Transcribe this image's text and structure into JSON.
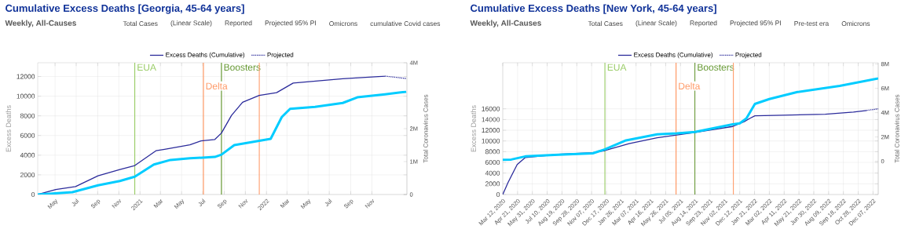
{
  "chart_data": [
    {
      "type": "line",
      "title": "Cumulative Excess Deaths [Georgia, 45-64 years]",
      "subtitle": "Weekly, All-Causes",
      "ylabel": "Excess Deaths",
      "y2label": "Total Coronavirus Cases",
      "xlim": [
        "2020-03-12",
        "2023-02-10"
      ],
      "xticks": [
        {
          "value": "2020-05-01",
          "label": "May"
        },
        {
          "value": "2020-07-01",
          "label": "Jul"
        },
        {
          "value": "2020-09-01",
          "label": "Sep"
        },
        {
          "value": "2020-11-01",
          "label": "Nov"
        },
        {
          "value": "2021-01-01",
          "label": "2021"
        },
        {
          "value": "2021-03-01",
          "label": "Mar"
        },
        {
          "value": "2021-05-01",
          "label": "May"
        },
        {
          "value": "2021-07-01",
          "label": "Jul"
        },
        {
          "value": "2021-09-01",
          "label": "Sep"
        },
        {
          "value": "2021-11-01",
          "label": "Nov"
        },
        {
          "value": "2022-01-01",
          "label": "2022"
        },
        {
          "value": "2022-03-01",
          "label": "Mar"
        },
        {
          "value": "2022-05-01",
          "label": "May"
        },
        {
          "value": "2022-07-01",
          "label": "Jul"
        },
        {
          "value": "2022-09-01",
          "label": "Sep"
        },
        {
          "value": "2022-11-01",
          "label": "Nov"
        }
      ],
      "ylim": [
        0,
        13400
      ],
      "yticks": [
        0,
        2000,
        4000,
        6000,
        8000,
        10000,
        12000
      ],
      "y2lim": [
        0,
        4000000
      ],
      "y2ticks": [
        {
          "value": 0,
          "label": "0"
        },
        {
          "value": 1000000,
          "label": "1M"
        },
        {
          "value": 2000000,
          "label": "2M"
        },
        {
          "value": 4000000,
          "label": "4M"
        }
      ],
      "grid": true,
      "legend": "top",
      "marker": "none",
      "series": [
        {
          "name": "Excess Deaths (Cumulative)",
          "color": "#2b2b9b",
          "line_style": "solid",
          "x": [
            "2020-03-12",
            "2020-05-03",
            "2020-06-29",
            "2020-09-02",
            "2020-11-04",
            "2020-12-17",
            "2021-02-16",
            "2021-03-13",
            "2021-05-25",
            "2021-06-26",
            "2021-08-05",
            "2021-08-24",
            "2021-09-22",
            "2021-10-24",
            "2021-12-11",
            "2022-01-30",
            "2022-03-19",
            "2022-08-09",
            "2022-12-09"
          ],
          "values": [
            0,
            500,
            800,
            1900,
            2550,
            2950,
            4450,
            4600,
            5050,
            5450,
            5600,
            6250,
            8050,
            9380,
            10080,
            10360,
            11340,
            11770,
            12040
          ]
        },
        {
          "name": "Projected",
          "color": "#2b2b9b",
          "line_style": "dotted",
          "x": [
            "2022-12-09",
            "2023-02-08"
          ],
          "values": [
            12040,
            11800
          ]
        },
        {
          "color": "#00ccff",
          "axis": "y2",
          "line_style": "solid",
          "x": [
            "2020-03-12",
            "2020-06-20",
            "2020-09-02",
            "2020-11-04",
            "2020-12-17",
            "2021-02-10",
            "2021-03-30",
            "2021-05-25",
            "2021-08-05",
            "2021-08-24",
            "2021-09-30",
            "2021-12-11",
            "2022-01-13",
            "2022-02-14",
            "2022-03-10",
            "2022-05-21",
            "2022-08-09",
            "2022-09-20",
            "2022-12-09",
            "2023-02-08"
          ],
          "values": [
            0,
            70000,
            280000,
            410000,
            540000,
            910000,
            1050000,
            1100000,
            1140000,
            1210000,
            1500000,
            1630000,
            1690000,
            2350000,
            2600000,
            2660000,
            2780000,
            2950000,
            3040000,
            3120000
          ]
        }
      ],
      "ref_lines": [
        {
          "axis": "x",
          "value": "2020-12-17",
          "label": "EUA",
          "color": "#99cc66"
        },
        {
          "axis": "x",
          "value": "2021-08-24",
          "label": "Boosters",
          "color": "#669933"
        },
        {
          "axis": "x",
          "value": "2021-07-03",
          "label": "Delta",
          "color": "#ff9966"
        },
        {
          "axis": "x",
          "value": "2021-12-11",
          "color": "#ff9966"
        }
      ],
      "annotations": [
        "Total Cases",
        "(Linear Scale)",
        "Reported",
        "Projected 95% PI",
        "Omicrons",
        "cumulative Covid cases"
      ]
    },
    {
      "type": "line",
      "title": "Cumulative Excess Deaths [New York, 45-64 years]",
      "subtitle": "Weekly, All-Causes",
      "ylabel": "Excess Deaths",
      "y2label": "Total Coronavirus Cases",
      "xlim": [
        "2020-03-12",
        "2022-12-21"
      ],
      "xticks": [
        {
          "value": "2020-03-12",
          "label": "Mar 12, 2020"
        },
        {
          "value": "2020-04-21",
          "label": "Apr 21, 2020"
        },
        {
          "value": "2020-05-31",
          "label": "May 31, 2020"
        },
        {
          "value": "2020-07-10",
          "label": "Jul 10, 2020"
        },
        {
          "value": "2020-08-19",
          "label": "Aug 19, 2020"
        },
        {
          "value": "2020-09-28",
          "label": "Sep 28, 2020"
        },
        {
          "value": "2020-11-07",
          "label": "Nov 07, 2020"
        },
        {
          "value": "2020-12-17",
          "label": "Dec 17, 2020"
        },
        {
          "value": "2021-01-26",
          "label": "Jan 26, 2021"
        },
        {
          "value": "2021-03-07",
          "label": "Mar 07, 2021"
        },
        {
          "value": "2021-04-16",
          "label": "Apr 16, 2021"
        },
        {
          "value": "2021-05-26",
          "label": "May 26, 2021"
        },
        {
          "value": "2021-07-05",
          "label": "Jul 05, 2021"
        },
        {
          "value": "2021-08-14",
          "label": "Aug 14, 2021"
        },
        {
          "value": "2021-09-23",
          "label": "Sep 23, 2021"
        },
        {
          "value": "2021-11-02",
          "label": "Nov 02, 2021"
        },
        {
          "value": "2021-12-12",
          "label": "Dec 12, 2021"
        },
        {
          "value": "2022-01-21",
          "label": "Jan 21, 2022"
        },
        {
          "value": "2022-03-02",
          "label": "Mar 02, 2022"
        },
        {
          "value": "2022-04-11",
          "label": "Apr 11, 2022"
        },
        {
          "value": "2022-05-21",
          "label": "May 21, 2022"
        },
        {
          "value": "2022-06-30",
          "label": "Jun 30, 2022"
        },
        {
          "value": "2022-08-09",
          "label": "Aug 09, 2022"
        },
        {
          "value": "2022-09-18",
          "label": "Sep 18, 2022"
        },
        {
          "value": "2022-10-28",
          "label": "Oct 28, 2022"
        },
        {
          "value": "2022-12-07",
          "label": "Dec 07, 2022"
        }
      ],
      "ylim": [
        0,
        24600
      ],
      "yticks": [
        0,
        2000,
        4000,
        6000,
        8000,
        10000,
        12000,
        14000,
        16000
      ],
      "y2lim": [
        -2740000,
        8110000
      ],
      "y2ticks": [
        {
          "value": 0,
          "label": "0"
        },
        {
          "value": 2000000,
          "label": "2M"
        },
        {
          "value": 4000000,
          "label": "4M"
        },
        {
          "value": 6000000,
          "label": "6M"
        },
        {
          "value": 8000000,
          "label": "8M"
        }
      ],
      "grid": true,
      "legend": "top",
      "marker": "none",
      "series": [
        {
          "name": "Excess Deaths (Cumulative)",
          "color": "#2b2b9b",
          "line_style": "solid",
          "x": [
            "2020-03-12",
            "2020-03-26",
            "2020-04-20",
            "2020-05-12",
            "2020-08-10",
            "2020-11-10",
            "2020-12-13",
            "2021-02-16",
            "2021-05-03",
            "2021-06-25",
            "2021-08-13",
            "2021-11-23",
            "2021-12-24",
            "2022-01-08",
            "2022-01-22",
            "2022-04-08",
            "2022-07-31",
            "2022-10-15",
            "2022-11-20"
          ],
          "values": [
            0,
            2200,
            5600,
            6900,
            7500,
            7800,
            8200,
            9500,
            10600,
            11100,
            11600,
            12700,
            13600,
            14200,
            14700,
            14800,
            15000,
            15400,
            15700
          ]
        },
        {
          "name": "Projected",
          "color": "#2b2b9b",
          "line_style": "dotted",
          "x": [
            "2022-11-20",
            "2022-12-21"
          ],
          "values": [
            15700,
            16000
          ]
        },
        {
          "color": "#00ccff",
          "axis": "y2",
          "line_style": "solid",
          "x": [
            "2020-03-12",
            "2020-04-04",
            "2020-05-12",
            "2020-08-10",
            "2020-11-10",
            "2020-12-13",
            "2021-02-08",
            "2021-05-03",
            "2021-06-25",
            "2021-08-13",
            "2021-11-23",
            "2021-12-12",
            "2021-12-30",
            "2022-01-22",
            "2022-03-02",
            "2022-05-17",
            "2022-09-08",
            "2022-12-21"
          ],
          "values": [
            120000,
            140000,
            400000,
            530000,
            650000,
            980000,
            1720000,
            2210000,
            2290000,
            2410000,
            3040000,
            3120000,
            3530000,
            4720000,
            5120000,
            5700000,
            6200000,
            6820000
          ]
        }
      ],
      "ref_lines": [
        {
          "axis": "x",
          "value": "2020-12-13",
          "label": "EUA",
          "color": "#99cc66"
        },
        {
          "axis": "x",
          "value": "2021-08-13",
          "label": "Boosters",
          "color": "#669933"
        },
        {
          "axis": "x",
          "value": "2021-06-23",
          "label": "Delta",
          "color": "#ff9966"
        },
        {
          "axis": "x",
          "value": "2021-11-25",
          "color": "#ff9966"
        }
      ],
      "annotations": [
        "Total Cases",
        "(Linear Scale)",
        "Reported",
        "Projected 95% PI",
        "Pre-test era",
        "Omicrons"
      ]
    }
  ]
}
